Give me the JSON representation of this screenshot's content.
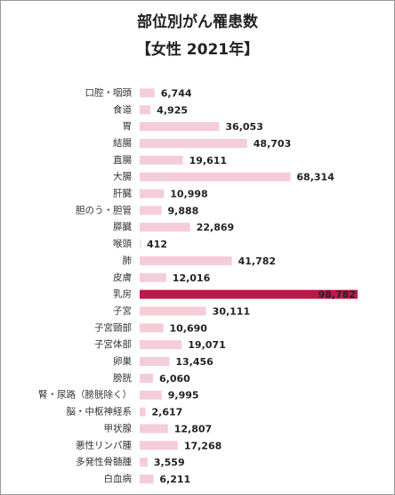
{
  "chart_data": {
    "type": "bar",
    "orientation": "horizontal",
    "title": "部位別がん罹患数",
    "subtitle": "【女性 2021年】",
    "categories": [
      "口腔・咽頭",
      "食道",
      "胃",
      "結腸",
      "直腸",
      "大腸",
      "肝臓",
      "胆のう・胆管",
      "膵臓",
      "喉頭",
      "肺",
      "皮膚",
      "乳房",
      "子宮",
      "子宮頸部",
      "子宮体部",
      "卵巣",
      "膀胱",
      "腎・尿路（膀胱除く）",
      "脳・中枢神経系",
      "甲状腺",
      "悪性リンパ腫",
      "多発性骨髄腫",
      "白血病"
    ],
    "values": [
      6744,
      4925,
      36053,
      48703,
      19611,
      68314,
      10998,
      9888,
      22869,
      412,
      41782,
      12016,
      98782,
      30111,
      10690,
      19071,
      13456,
      6060,
      9995,
      2617,
      12807,
      17268,
      3559,
      6211
    ],
    "value_labels": [
      "6,744",
      "4,925",
      "36,053",
      "48,703",
      "19,611",
      "68,314",
      "10,998",
      "9,888",
      "22,869",
      "412",
      "41,782",
      "12,016",
      "98,782",
      "30,111",
      "10,690",
      "19,071",
      "13,456",
      "6,060",
      "9,995",
      "2,617",
      "12,807",
      "17,268",
      "3,559",
      "6,211"
    ],
    "colors": [
      "#f4cdd9",
      "#f4cdd9",
      "#f4cdd9",
      "#f4cdd9",
      "#f4cdd9",
      "#f4cdd9",
      "#f4cdd9",
      "#f4cdd9",
      "#f4cdd9",
      "#f4cdd9",
      "#f4cdd9",
      "#f4cdd9",
      "#c0174a",
      "#f4cdd9",
      "#f4cdd9",
      "#f4cdd9",
      "#f4cdd9",
      "#f4cdd9",
      "#f4cdd9",
      "#f4cdd9",
      "#f4cdd9",
      "#f4cdd9",
      "#f4cdd9",
      "#f4cdd9"
    ],
    "xlim": [
      0,
      100000
    ]
  }
}
